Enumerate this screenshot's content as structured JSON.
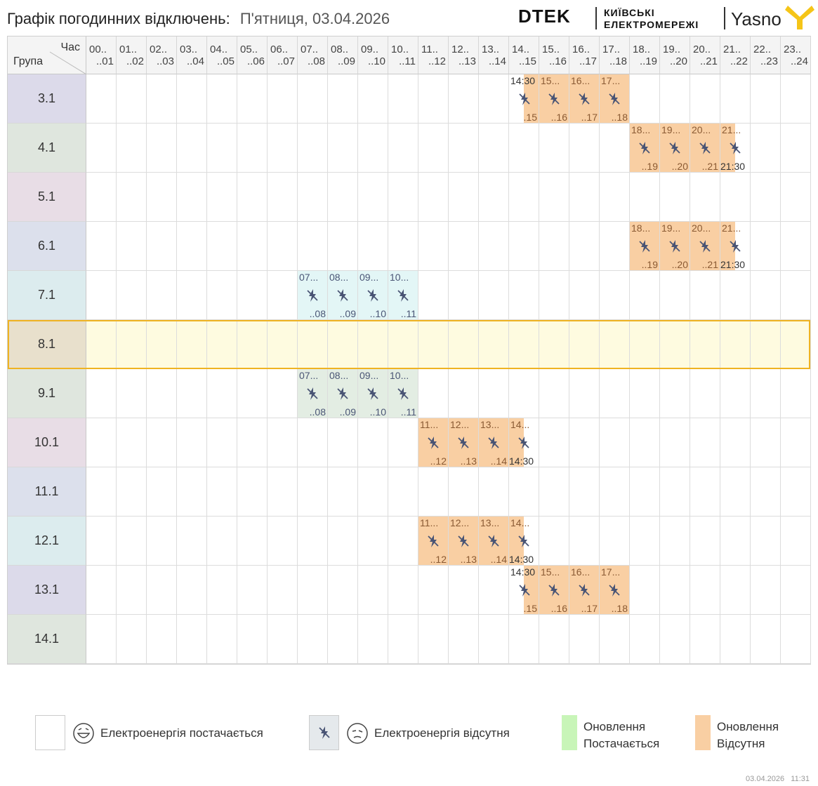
{
  "header": {
    "title": "Графік погодинних відключень:",
    "date": "П'ятниця, 03.04.2026",
    "logo_dtek": "DTEK",
    "logo_kyiv_line1": "КИЇВСЬКІ",
    "logo_kyiv_line2": "ЕЛЕКТРОМЕРЕЖІ",
    "logo_yasno": "Yasno"
  },
  "table": {
    "corner_hour": "Час",
    "corner_group": "Група",
    "hours": [
      {
        "a": "00..",
        "b": "..01"
      },
      {
        "a": "01..",
        "b": "..02"
      },
      {
        "a": "02..",
        "b": "..03"
      },
      {
        "a": "03..",
        "b": "..04"
      },
      {
        "a": "04..",
        "b": "..05"
      },
      {
        "a": "05..",
        "b": "..06"
      },
      {
        "a": "06..",
        "b": "..07"
      },
      {
        "a": "07..",
        "b": "..08"
      },
      {
        "a": "08..",
        "b": "..09"
      },
      {
        "a": "09..",
        "b": "..10"
      },
      {
        "a": "10..",
        "b": "..11"
      },
      {
        "a": "11..",
        "b": "..12"
      },
      {
        "a": "12..",
        "b": "..13"
      },
      {
        "a": "13..",
        "b": "..14"
      },
      {
        "a": "14..",
        "b": "..15"
      },
      {
        "a": "15..",
        "b": "..16"
      },
      {
        "a": "16..",
        "b": "..17"
      },
      {
        "a": "17..",
        "b": "..18"
      },
      {
        "a": "18..",
        "b": "..19"
      },
      {
        "a": "19..",
        "b": "..20"
      },
      {
        "a": "20..",
        "b": "..21"
      },
      {
        "a": "21..",
        "b": "..22"
      },
      {
        "a": "22..",
        "b": "..23"
      },
      {
        "a": "23..",
        "b": "..24"
      }
    ],
    "groups": [
      {
        "label": "3.1",
        "color": "#dcdaea",
        "outages": [
          {
            "hour": 14,
            "half": "second",
            "t1": "14:30",
            "t2": ".15",
            "kind": "update"
          },
          {
            "hour": 15,
            "t1": "15...",
            "t2": "..16",
            "kind": "update"
          },
          {
            "hour": 16,
            "t1": "16...",
            "t2": "..17",
            "kind": "update"
          },
          {
            "hour": 17,
            "t1": "17...",
            "t2": "..18",
            "kind": "update"
          }
        ]
      },
      {
        "label": "4.1",
        "color": "#dfe6de",
        "outages": [
          {
            "hour": 18,
            "t1": "18...",
            "t2": "..19",
            "kind": "update"
          },
          {
            "hour": 19,
            "t1": "19...",
            "t2": "..20",
            "kind": "update"
          },
          {
            "hour": 20,
            "t1": "20...",
            "t2": "..21",
            "kind": "update"
          },
          {
            "hour": 21,
            "half": "first",
            "t1": "21...",
            "t2": "21:30",
            "kind": "update"
          }
        ]
      },
      {
        "label": "5.1",
        "color": "#e8dde6",
        "outages": []
      },
      {
        "label": "6.1",
        "color": "#dce0ec",
        "outages": [
          {
            "hour": 18,
            "t1": "18...",
            "t2": "..19",
            "kind": "update"
          },
          {
            "hour": 19,
            "t1": "19...",
            "t2": "..20",
            "kind": "update"
          },
          {
            "hour": 20,
            "t1": "20...",
            "t2": "..21",
            "kind": "update"
          },
          {
            "hour": 21,
            "half": "first",
            "t1": "21...",
            "t2": "21:30",
            "kind": "update"
          }
        ]
      },
      {
        "label": "7.1",
        "color": "#dcecee",
        "outages": [
          {
            "hour": 7,
            "t1": "07...",
            "t2": "..08",
            "kind": "normal"
          },
          {
            "hour": 8,
            "t1": "08...",
            "t2": "..09",
            "kind": "normal"
          },
          {
            "hour": 9,
            "t1": "09...",
            "t2": "..10",
            "kind": "normal"
          },
          {
            "hour": 10,
            "t1": "10...",
            "t2": "..11",
            "kind": "normal"
          }
        ]
      },
      {
        "label": "8.1",
        "color": "#e8e0cc",
        "highlight": true,
        "outages": []
      },
      {
        "label": "9.1",
        "color": "#dfe6de",
        "outages": [
          {
            "hour": 7,
            "t1": "07...",
            "t2": "..08",
            "kind": "normal"
          },
          {
            "hour": 8,
            "t1": "08...",
            "t2": "..09",
            "kind": "normal"
          },
          {
            "hour": 9,
            "t1": "09...",
            "t2": "..10",
            "kind": "normal"
          },
          {
            "hour": 10,
            "t1": "10...",
            "t2": "..11",
            "kind": "normal"
          }
        ]
      },
      {
        "label": "10.1",
        "color": "#e8dde6",
        "outages": [
          {
            "hour": 11,
            "t1": "11...",
            "t2": "..12",
            "kind": "update"
          },
          {
            "hour": 12,
            "t1": "12...",
            "t2": "..13",
            "kind": "update"
          },
          {
            "hour": 13,
            "t1": "13...",
            "t2": "..14",
            "kind": "update"
          },
          {
            "hour": 14,
            "half": "first",
            "t1": "14...",
            "t2": "14:30",
            "kind": "update"
          }
        ]
      },
      {
        "label": "11.1",
        "color": "#dce0ec",
        "outages": []
      },
      {
        "label": "12.1",
        "color": "#dcecee",
        "outages": [
          {
            "hour": 11,
            "t1": "11...",
            "t2": "..12",
            "kind": "update"
          },
          {
            "hour": 12,
            "t1": "12...",
            "t2": "..13",
            "kind": "update"
          },
          {
            "hour": 13,
            "t1": "13...",
            "t2": "..14",
            "kind": "update"
          },
          {
            "hour": 14,
            "half": "first",
            "t1": "14...",
            "t2": "14:30",
            "kind": "update"
          }
        ]
      },
      {
        "label": "13.1",
        "color": "#dcdaea",
        "outages": [
          {
            "hour": 14,
            "half": "second",
            "t1": "14:30",
            "t2": ".15",
            "kind": "update"
          },
          {
            "hour": 15,
            "t1": "15...",
            "t2": "..16",
            "kind": "update"
          },
          {
            "hour": 16,
            "t1": "16...",
            "t2": "..17",
            "kind": "update"
          },
          {
            "hour": 17,
            "t1": "17...",
            "t2": "..18",
            "kind": "update"
          }
        ]
      },
      {
        "label": "14.1",
        "color": "#dfe6de",
        "outages": []
      }
    ]
  },
  "colors": {
    "update_off": "#f9cfa3",
    "update_on": "#c8f5b8",
    "normal_off_teal": "#e3f6f6",
    "normal_off_green": "#e3ede3",
    "highlight_fill": "#fefbe0",
    "highlight_border": "#efb322",
    "icon": "#4a5575"
  },
  "legend": {
    "power_on": "Електроенергія постачається",
    "power_off": "Електроенергія відсутня",
    "update_on_line1": "Оновлення",
    "update_on_line2": "Постачається",
    "update_off_line1": "Оновлення",
    "update_off_line2": "Відсутня"
  },
  "footer": {
    "date": "03.04.2026",
    "time": "11:31"
  }
}
